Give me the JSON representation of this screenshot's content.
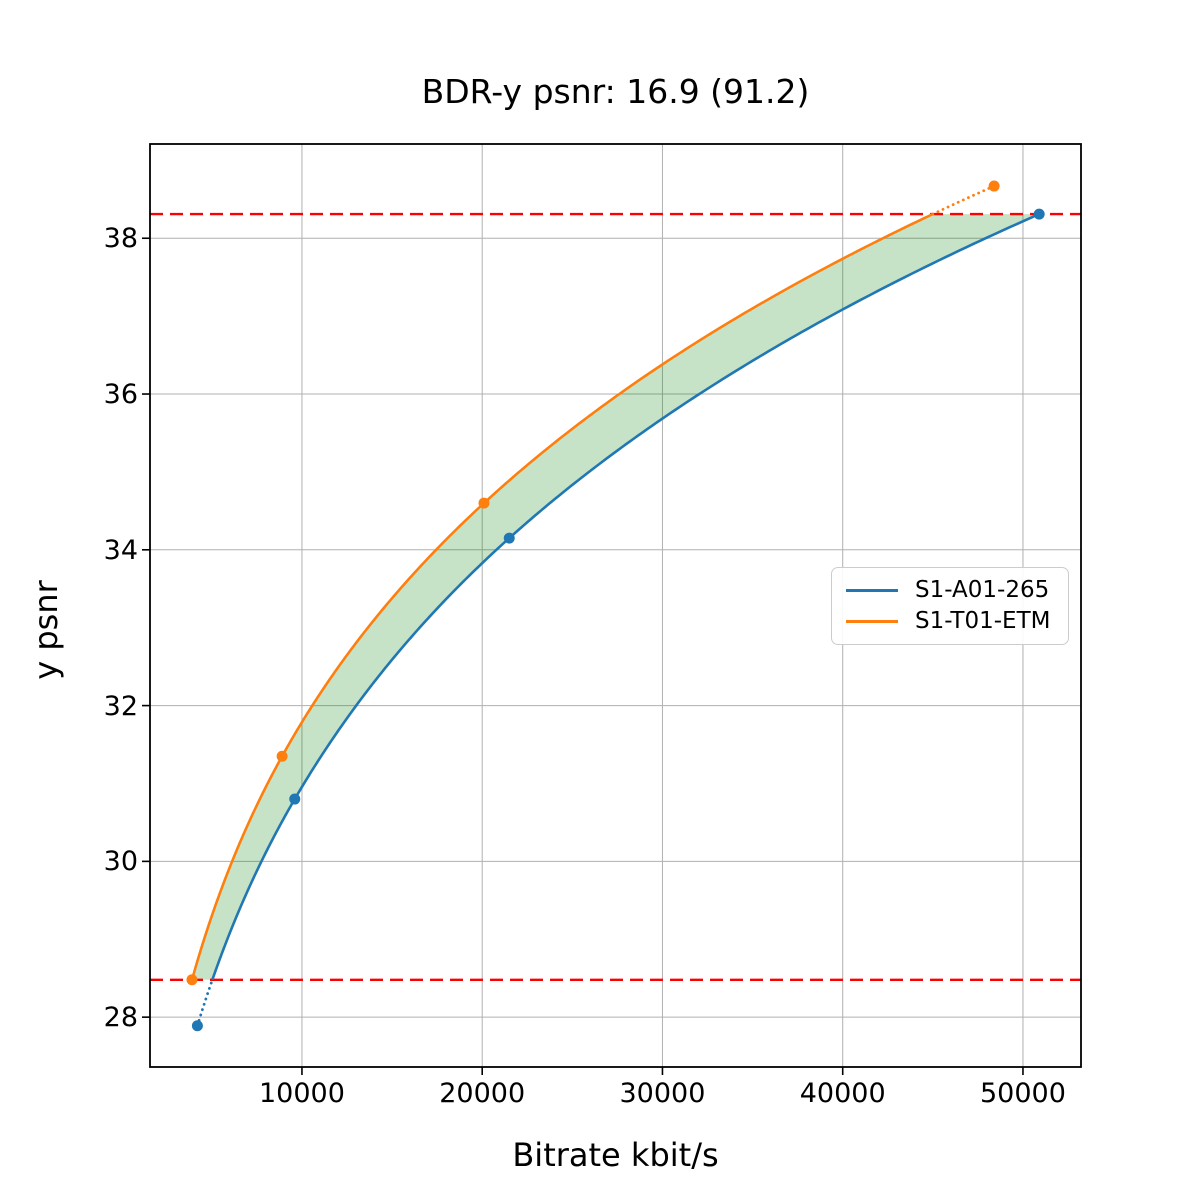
{
  "chart_data": {
    "type": "line",
    "title": "BDR-y psnr: 16.9 (91.2)",
    "xlabel": "Bitrate kbit/s",
    "ylabel": "y psnr",
    "xlim": [
      1570,
      53220
    ],
    "ylim": [
      27.36,
      39.21
    ],
    "xticks": [
      10000,
      20000,
      30000,
      40000,
      50000
    ],
    "yticks": [
      28,
      30,
      32,
      34,
      36,
      38
    ],
    "grid": true,
    "grid_color": "#b0b0b0",
    "legend_position": "center-right",
    "series": [
      {
        "name": "S1-A01-265",
        "color": "#1f77b4",
        "x": [
          4200,
          9600,
          21500,
          50900
        ],
        "y": [
          27.89,
          30.8,
          34.15,
          38.31
        ]
      },
      {
        "name": "S1-T01-ETM",
        "color": "#ff7f0e",
        "x": [
          3900,
          8900,
          20100,
          48400
        ],
        "y": [
          28.48,
          31.35,
          34.6,
          38.67
        ]
      }
    ],
    "overlap_lines": {
      "lower": 28.48,
      "upper": 38.31,
      "color": "#ff0000",
      "style": "dashed"
    },
    "fill_between": {
      "color": "#008000",
      "opacity": 0.22
    }
  }
}
